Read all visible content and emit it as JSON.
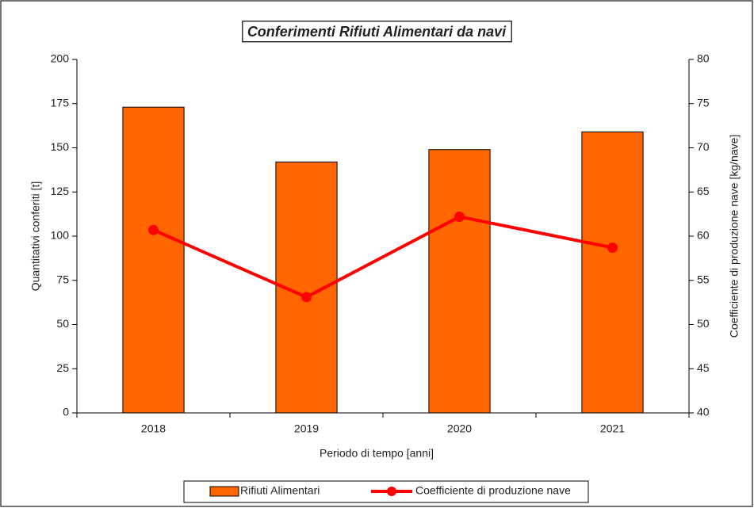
{
  "chart_data": {
    "type": "bar",
    "title": "Conferimenti Rifiuti Alimentari da navi",
    "x_label": "Periodo di tempo [anni]",
    "y_label": "Quantitativi conferiti [t]",
    "y2_label": "Coefficiente di produzione nave [kg/nave]",
    "categories": [
      "2018",
      "2019",
      "2020",
      "2021"
    ],
    "series": [
      {
        "name": "Rifiuti Alimentari",
        "type": "bar",
        "color": "#ff6600",
        "values": [
          173,
          142,
          149,
          159
        ]
      },
      {
        "name": "Coefficiente di produzione nave",
        "type": "line",
        "axis": "y2",
        "color": "#ff0000",
        "values": [
          60.7,
          53.1,
          62.2,
          58.7
        ]
      }
    ],
    "ylim": [
      0,
      200
    ],
    "yticks": [
      0,
      25,
      50,
      75,
      100,
      125,
      150,
      175,
      200
    ],
    "y2lim": [
      40,
      80
    ],
    "y2ticks": [
      40,
      45,
      50,
      55,
      60,
      65,
      70,
      75,
      80
    ],
    "legend": "bottom",
    "grid": false
  }
}
